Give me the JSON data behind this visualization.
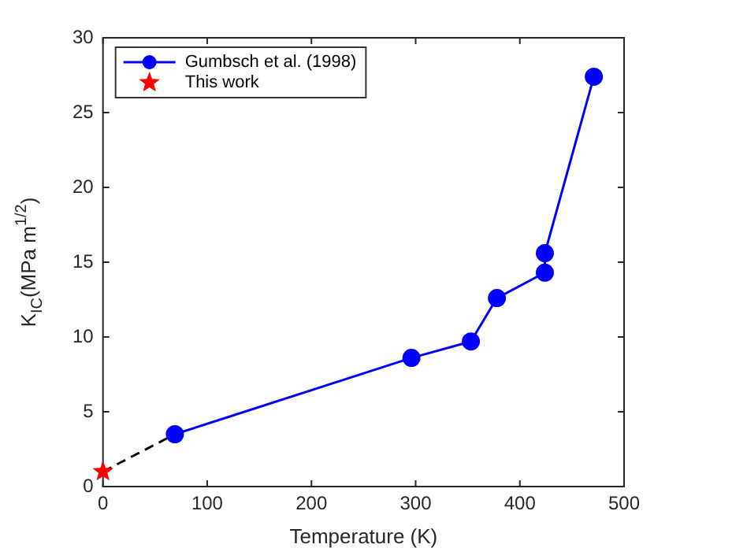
{
  "chart_data": {
    "type": "line",
    "xlabel": "Temperature (K)",
    "ylabel": "K$_{IC}$(MPa m$^{1/2}$)",
    "xlim": [
      0,
      500
    ],
    "xticks": [
      0,
      100,
      200,
      300,
      400,
      500
    ],
    "ylim": [
      0,
      30
    ],
    "yticks": [
      0,
      5,
      10,
      15,
      20,
      25,
      30
    ],
    "grid": false,
    "legend": "top left",
    "series": [
      {
        "name": "Gumbsch et al. (1998)",
        "color": "#0000ff",
        "marker": "circle",
        "line_style": "solid",
        "x": [
          69,
          296,
          353,
          378,
          424,
          424,
          471
        ],
        "values": [
          3.5,
          8.6,
          9.7,
          12.6,
          14.3,
          15.6,
          27.4
        ]
      },
      {
        "name": "This work",
        "type": "scatter",
        "color": "#ff0000",
        "marker": "star",
        "x": [
          0
        ],
        "values": [
          1
        ]
      },
      {
        "color": "#000000",
        "marker": "none",
        "line_style": "dashed",
        "x": [
          0,
          69
        ],
        "values": [
          1,
          3.5
        ]
      }
    ]
  }
}
